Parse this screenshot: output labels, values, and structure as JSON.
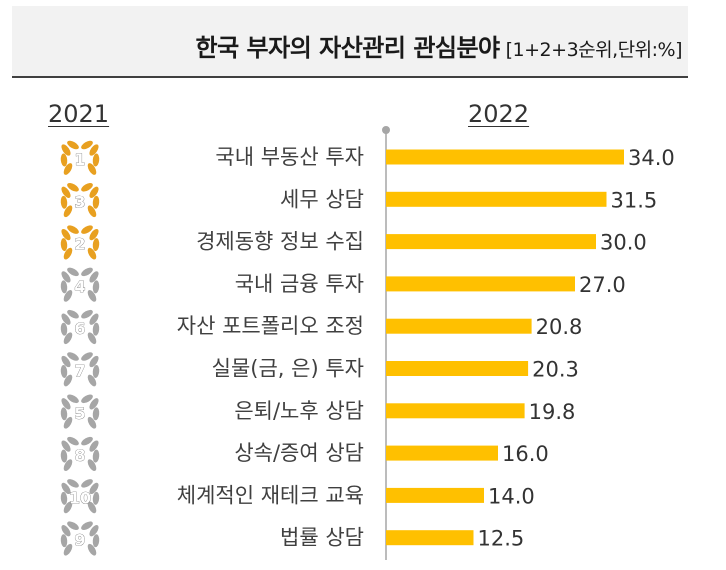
{
  "title": "한국 부자의 자산관리 관심분야",
  "subtitle": "[1+2+3순위,단위:%]",
  "year_left": "2021",
  "year_right": "2022",
  "colors": {
    "bar": "#FFC000",
    "gold": "#E8A020",
    "silver": "#A6A6A6",
    "axis": "#A6A6A6"
  },
  "chart_data": {
    "type": "bar",
    "orientation": "horizontal",
    "title": "한국 부자의 자산관리 관심분야",
    "subtitle": "[1+2+3순위,단위:%]",
    "categories": [
      "국내 부동산 투자",
      "세무 상담",
      "경제동향 정보 수집",
      "국내 금융 투자",
      "자산 포트폴리오 조정",
      "실물(금, 은) 투자",
      "은퇴/노후 상담",
      "상속/증여 상담",
      "체계적인 재테크 교육",
      "법률 상담"
    ],
    "series": [
      {
        "name": "2022",
        "values": [
          34.0,
          31.5,
          30.0,
          27.0,
          20.8,
          20.3,
          19.8,
          16.0,
          14.0,
          12.5
        ],
        "labels": [
          "34.0",
          "31.5",
          "30.0",
          "27.0",
          "20.8",
          "20.3",
          "19.8",
          "16.0",
          "14.0",
          "12.5"
        ]
      }
    ],
    "ranks_2021": [
      {
        "rank": "1",
        "badge": "gold"
      },
      {
        "rank": "3",
        "badge": "gold"
      },
      {
        "rank": "2",
        "badge": "gold"
      },
      {
        "rank": "4",
        "badge": "silver"
      },
      {
        "rank": "6",
        "badge": "silver"
      },
      {
        "rank": "7",
        "badge": "silver"
      },
      {
        "rank": "5",
        "badge": "silver"
      },
      {
        "rank": "8",
        "badge": "silver"
      },
      {
        "rank": "10",
        "badge": "silver"
      },
      {
        "rank": "9",
        "badge": "silver"
      }
    ],
    "xlim": [
      0,
      40
    ],
    "grid": false,
    "legend": "none"
  }
}
